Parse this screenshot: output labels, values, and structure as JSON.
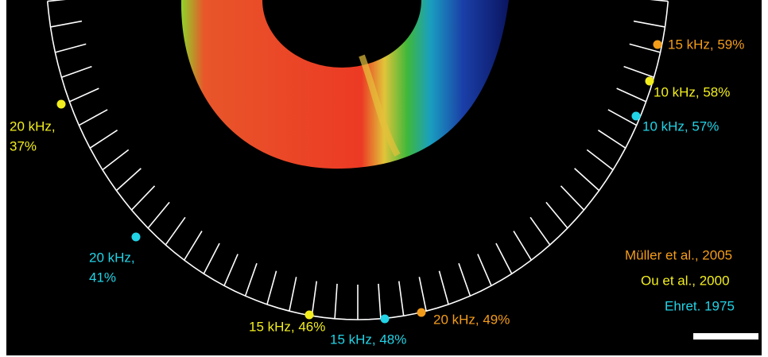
{
  "annotations": [
    {
      "lines": [
        "15 kHz, 59%"
      ]
    },
    {
      "lines": [
        "10 kHz, 58%"
      ]
    },
    {
      "lines": [
        "10 kHz, 57%"
      ]
    },
    {
      "lines": [
        "20 kHz,",
        "37%"
      ]
    },
    {
      "lines": [
        "20 kHz,",
        "41%"
      ]
    },
    {
      "lines": [
        "15 kHz, 46%"
      ]
    },
    {
      "lines": [
        "15 kHz, 48%"
      ]
    },
    {
      "lines": [
        "20 kHz, 49%"
      ]
    }
  ],
  "legend": [
    "Müller et al., 2005",
    "Ou et al., 2000",
    "Ehret. 1975"
  ]
}
